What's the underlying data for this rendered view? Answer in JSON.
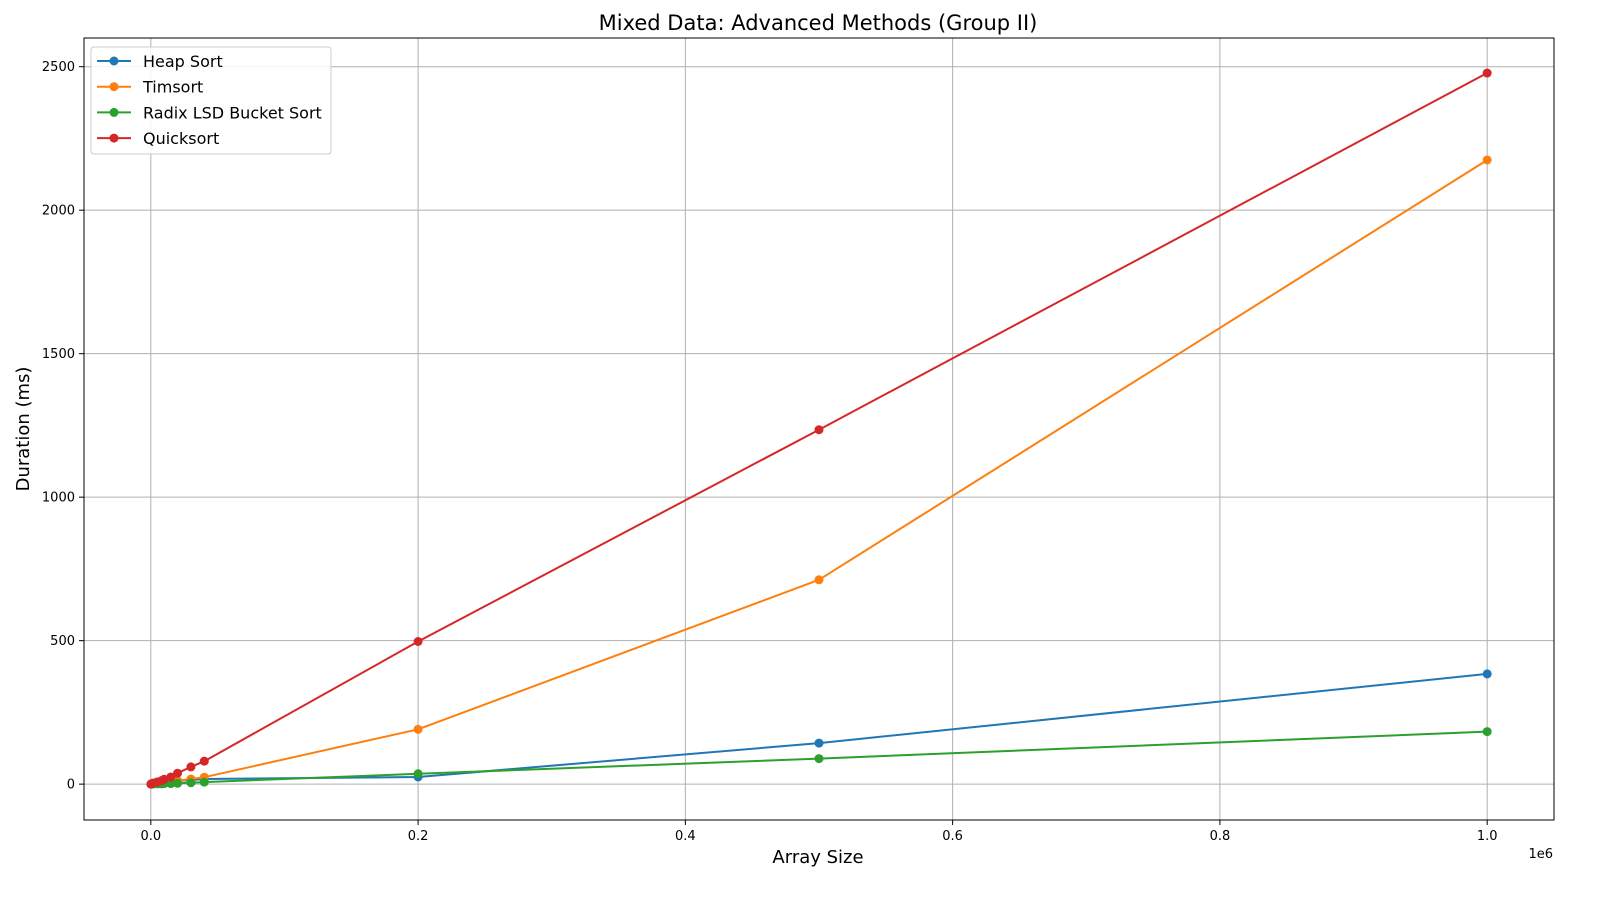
{
  "chart_data": {
    "type": "line",
    "title": "Mixed Data: Advanced Methods (Group II)",
    "xlabel": "Array Size",
    "ylabel": "Duration (ms)",
    "x_offset_label": "1e6",
    "xlim": [
      -0.05,
      1.05
    ],
    "ylim": [
      -125,
      2600
    ],
    "x_ticks": [
      0.0,
      0.2,
      0.4,
      0.6,
      0.8,
      1.0
    ],
    "x_tick_labels": [
      "0.0",
      "0.2",
      "0.4",
      "0.6",
      "0.8",
      "1.0"
    ],
    "y_ticks": [
      0,
      500,
      1000,
      1500,
      2000,
      2500
    ],
    "y_tick_labels": [
      "0",
      "500",
      "1000",
      "1500",
      "2000",
      "2500"
    ],
    "grid": true,
    "legend_position": "top-left",
    "x": [
      0.0001,
      0.0005,
      0.001,
      0.002,
      0.005,
      0.008,
      0.01,
      0.015,
      0.02,
      0.03,
      0.04,
      0.2,
      0.5,
      1.0
    ],
    "series": [
      {
        "name": "Heap Sort",
        "color": "#1f77b4",
        "values": [
          0,
          0.5,
          1,
          2,
          4,
          6,
          8,
          10,
          12,
          14,
          18,
          25,
          143,
          384
        ]
      },
      {
        "name": "Timsort",
        "color": "#ff7f0e",
        "values": [
          0,
          0.5,
          1,
          2,
          3,
          5,
          7,
          9,
          12,
          18,
          24,
          191,
          712,
          2175
        ]
      },
      {
        "name": "Radix LSD Bucket Sort",
        "color": "#2ca02c",
        "values": [
          0,
          0.2,
          0.5,
          1,
          1,
          1,
          2,
          2,
          3,
          5,
          7,
          36,
          89,
          183
        ]
      },
      {
        "name": "Quicksort",
        "color": "#d62728",
        "values": [
          0,
          1,
          2,
          4,
          8,
          12,
          17,
          25,
          38,
          60,
          80,
          497,
          1235,
          2478
        ]
      }
    ]
  }
}
